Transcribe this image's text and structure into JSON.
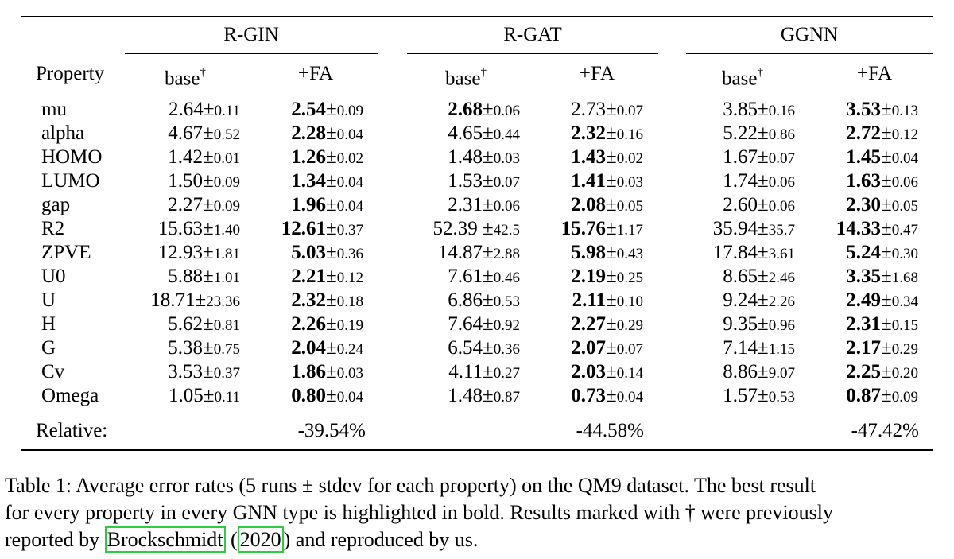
{
  "table": {
    "groups": [
      "R-GIN",
      "R-GAT",
      "GGNN"
    ],
    "property_header": "Property",
    "sub_headers": [
      "base",
      "+FA"
    ],
    "dagger": "†",
    "rows": [
      {
        "name": "mu",
        "cells": [
          {
            "v": "2.64",
            "pm": "±",
            "sd": "0.11",
            "bold": false
          },
          {
            "v": "2.54",
            "pm": "±",
            "sd": "0.09",
            "bold": true
          },
          {
            "v": "2.68",
            "pm": "±",
            "sd": "0.06",
            "bold": true
          },
          {
            "v": "2.73",
            "pm": "±",
            "sd": "0.07",
            "bold": false
          },
          {
            "v": "3.85",
            "pm": "±",
            "sd": "0.16",
            "bold": false
          },
          {
            "v": "3.53",
            "pm": "±",
            "sd": "0.13",
            "bold": true
          }
        ]
      },
      {
        "name": "alpha",
        "cells": [
          {
            "v": "4.67",
            "pm": "±",
            "sd": "0.52",
            "bold": false
          },
          {
            "v": "2.28",
            "pm": "±",
            "sd": "0.04",
            "bold": true
          },
          {
            "v": "4.65",
            "pm": "±",
            "sd": "0.44",
            "bold": false
          },
          {
            "v": "2.32",
            "pm": "±",
            "sd": "0.16",
            "bold": true
          },
          {
            "v": "5.22",
            "pm": "±",
            "sd": "0.86",
            "bold": false
          },
          {
            "v": "2.72",
            "pm": "±",
            "sd": "0.12",
            "bold": true
          }
        ]
      },
      {
        "name": "HOMO",
        "cells": [
          {
            "v": "1.42",
            "pm": "±",
            "sd": "0.01",
            "bold": false
          },
          {
            "v": "1.26",
            "pm": "±",
            "sd": "0.02",
            "bold": true
          },
          {
            "v": "1.48",
            "pm": "±",
            "sd": "0.03",
            "bold": false
          },
          {
            "v": "1.43",
            "pm": "±",
            "sd": "0.02",
            "bold": true
          },
          {
            "v": "1.67",
            "pm": "±",
            "sd": "0.07",
            "bold": false
          },
          {
            "v": "1.45",
            "pm": "±",
            "sd": "0.04",
            "bold": true
          }
        ]
      },
      {
        "name": "LUMO",
        "cells": [
          {
            "v": "1.50",
            "pm": "±",
            "sd": "0.09",
            "bold": false
          },
          {
            "v": "1.34",
            "pm": "±",
            "sd": "0.04",
            "bold": true
          },
          {
            "v": "1.53",
            "pm": "±",
            "sd": "0.07",
            "bold": false
          },
          {
            "v": "1.41",
            "pm": "±",
            "sd": "0.03",
            "bold": true
          },
          {
            "v": "1.74",
            "pm": "±",
            "sd": "0.06",
            "bold": false
          },
          {
            "v": "1.63",
            "pm": "±",
            "sd": "0.06",
            "bold": true
          }
        ]
      },
      {
        "name": "gap",
        "cells": [
          {
            "v": "2.27",
            "pm": "±",
            "sd": "0.09",
            "bold": false
          },
          {
            "v": "1.96",
            "pm": "±",
            "sd": "0.04",
            "bold": true
          },
          {
            "v": "2.31",
            "pm": "±",
            "sd": "0.06",
            "bold": false
          },
          {
            "v": "2.08",
            "pm": "±",
            "sd": "0.05",
            "bold": true
          },
          {
            "v": "2.60",
            "pm": "±",
            "sd": "0.06",
            "bold": false
          },
          {
            "v": "2.30",
            "pm": "±",
            "sd": "0.05",
            "bold": true
          }
        ]
      },
      {
        "name": "R2",
        "cells": [
          {
            "v": "15.63",
            "pm": "±",
            "sd": "1.40",
            "bold": false
          },
          {
            "v": "12.61",
            "pm": "±",
            "sd": "0.37",
            "bold": true
          },
          {
            "v": "52.39 ",
            "pm": "±",
            "sd": "42.5",
            "bold": false
          },
          {
            "v": "15.76",
            "pm": "±",
            "sd": "1.17",
            "bold": true
          },
          {
            "v": "35.94",
            "pm": "±",
            "sd": "35.7",
            "bold": false
          },
          {
            "v": "14.33",
            "pm": "±",
            "sd": "0.47",
            "bold": true
          }
        ]
      },
      {
        "name": "ZPVE",
        "cells": [
          {
            "v": "12.93",
            "pm": "±",
            "sd": "1.81",
            "bold": false
          },
          {
            "v": "5.03",
            "pm": "±",
            "sd": "0.36",
            "bold": true
          },
          {
            "v": "14.87",
            "pm": "±",
            "sd": "2.88",
            "bold": false
          },
          {
            "v": "5.98",
            "pm": "±",
            "sd": "0.43",
            "bold": true
          },
          {
            "v": "17.84",
            "pm": "±",
            "sd": "3.61",
            "bold": false
          },
          {
            "v": "5.24",
            "pm": "±",
            "sd": "0.30",
            "bold": true
          }
        ]
      },
      {
        "name": "U0",
        "cells": [
          {
            "v": "5.88",
            "pm": "±",
            "sd": "1.01",
            "bold": false
          },
          {
            "v": "2.21",
            "pm": "±",
            "sd": "0.12",
            "bold": true
          },
          {
            "v": "7.61",
            "pm": "±",
            "sd": "0.46",
            "bold": false
          },
          {
            "v": "2.19",
            "pm": "±",
            "sd": "0.25",
            "bold": true
          },
          {
            "v": "8.65",
            "pm": "±",
            "sd": "2.46",
            "bold": false
          },
          {
            "v": "3.35",
            "pm": "±",
            "sd": "1.68",
            "bold": true
          }
        ]
      },
      {
        "name": "U",
        "cells": [
          {
            "v": "18.71",
            "pm": "±",
            "sd": "23.36",
            "bold": false
          },
          {
            "v": "2.32",
            "pm": "±",
            "sd": "0.18",
            "bold": true
          },
          {
            "v": "6.86",
            "pm": "±",
            "sd": "0.53",
            "bold": false
          },
          {
            "v": "2.11",
            "pm": "±",
            "sd": "0.10",
            "bold": true
          },
          {
            "v": "9.24",
            "pm": "±",
            "sd": "2.26",
            "bold": false
          },
          {
            "v": "2.49",
            "pm": "±",
            "sd": "0.34",
            "bold": true
          }
        ]
      },
      {
        "name": "H",
        "cells": [
          {
            "v": "5.62",
            "pm": "±",
            "sd": "0.81",
            "bold": false
          },
          {
            "v": "2.26",
            "pm": "±",
            "sd": "0.19",
            "bold": true
          },
          {
            "v": "7.64",
            "pm": "±",
            "sd": "0.92",
            "bold": false
          },
          {
            "v": "2.27",
            "pm": "±",
            "sd": "0.29",
            "bold": true
          },
          {
            "v": "9.35",
            "pm": "±",
            "sd": "0.96",
            "bold": false
          },
          {
            "v": "2.31",
            "pm": "±",
            "sd": "0.15",
            "bold": true
          }
        ]
      },
      {
        "name": "G",
        "cells": [
          {
            "v": "5.38",
            "pm": "±",
            "sd": "0.75",
            "bold": false
          },
          {
            "v": "2.04",
            "pm": "±",
            "sd": "0.24",
            "bold": true
          },
          {
            "v": "6.54",
            "pm": "±",
            "sd": "0.36",
            "bold": false
          },
          {
            "v": "2.07",
            "pm": "±",
            "sd": "0.07",
            "bold": true
          },
          {
            "v": "7.14",
            "pm": "±",
            "sd": "1.15",
            "bold": false
          },
          {
            "v": "2.17",
            "pm": "±",
            "sd": "0.29",
            "bold": true
          }
        ]
      },
      {
        "name": "Cv",
        "cells": [
          {
            "v": "3.53",
            "pm": "±",
            "sd": "0.37",
            "bold": false
          },
          {
            "v": "1.86",
            "pm": "±",
            "sd": "0.03",
            "bold": true
          },
          {
            "v": "4.11",
            "pm": "±",
            "sd": "0.27",
            "bold": false
          },
          {
            "v": "2.03",
            "pm": "±",
            "sd": "0.14",
            "bold": true
          },
          {
            "v": "8.86",
            "pm": "±",
            "sd": "9.07",
            "bold": false
          },
          {
            "v": "2.25",
            "pm": "±",
            "sd": "0.20",
            "bold": true
          }
        ]
      },
      {
        "name": "Omega",
        "cells": [
          {
            "v": "1.05",
            "pm": "±",
            "sd": "0.11",
            "bold": false
          },
          {
            "v": "0.80",
            "pm": "±",
            "sd": "0.04",
            "bold": true
          },
          {
            "v": "1.48",
            "pm": "±",
            "sd": "0.87",
            "bold": false
          },
          {
            "v": "0.73",
            "pm": "±",
            "sd": "0.04",
            "bold": true
          },
          {
            "v": "1.57",
            "pm": "±",
            "sd": "0.53",
            "bold": false
          },
          {
            "v": "0.87",
            "pm": "±",
            "sd": "0.09",
            "bold": true
          }
        ]
      }
    ],
    "relative_label": "Relative:",
    "relative_values": [
      "-39.54%",
      "-44.58%",
      "-47.42%"
    ]
  },
  "caption": {
    "text_1": "Table 1: Average error rates (5 runs ± stdev for each property) on the QM9 dataset. The best result",
    "text_2": "for every property in every GNN type is highlighted in bold. Results marked with † were previously",
    "text_3_pre": "reported by ",
    "cite_author": "Brockschmidt",
    "text_3_mid": " (",
    "cite_year": "2020",
    "text_3_post": ") and reproduced by us."
  },
  "colors": {
    "citation_box": "#2ecc40"
  }
}
